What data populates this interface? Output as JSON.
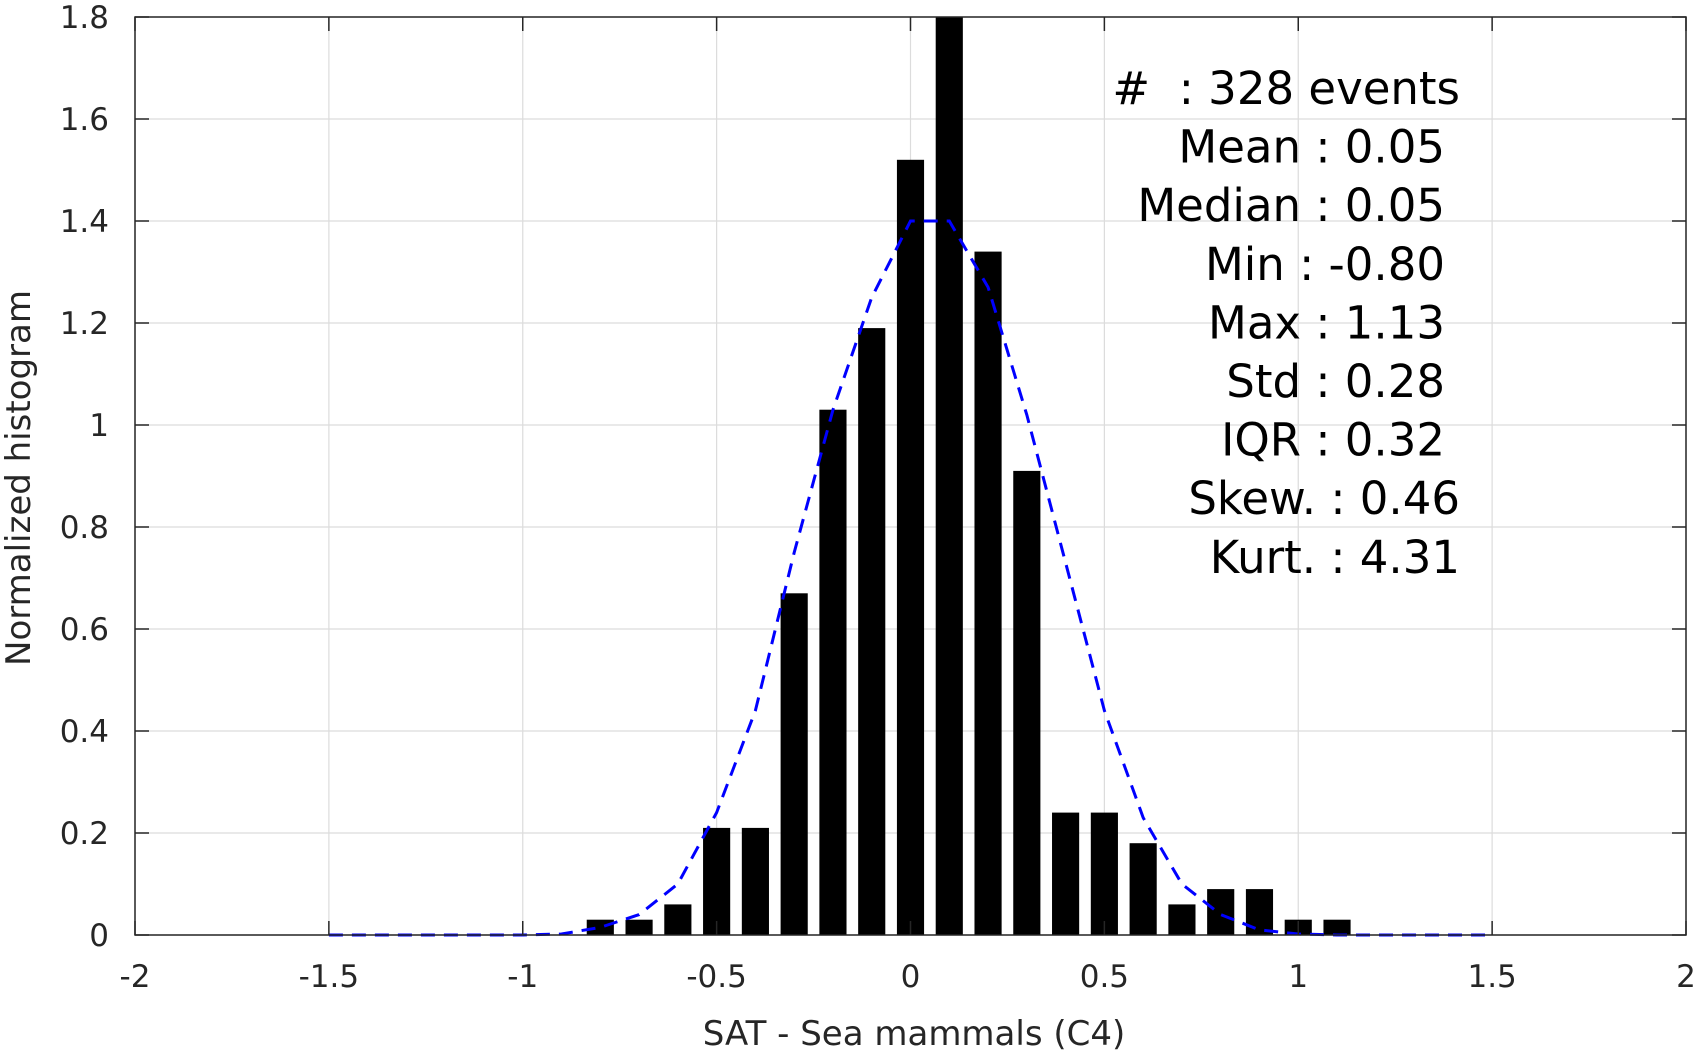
{
  "chart_data": {
    "type": "bar",
    "xlabel": "SAT - Sea mammals (C4)",
    "ylabel": "Normalized histogram",
    "xlim": [
      -2,
      2
    ],
    "ylim": [
      0,
      1.8
    ],
    "x_ticks": [
      -2,
      -1.5,
      -1,
      -0.5,
      0,
      0.5,
      1,
      1.5,
      2
    ],
    "x_tick_labels": [
      "-2",
      "-1.5",
      "-1",
      "-0.5",
      "0",
      "0.5",
      "1",
      "1.5",
      "2"
    ],
    "y_ticks": [
      0,
      0.2,
      0.4,
      0.6,
      0.8,
      1,
      1.2,
      1.4,
      1.6,
      1.8
    ],
    "y_tick_labels": [
      "0",
      "0.2",
      "0.4",
      "0.6",
      "0.8",
      "1",
      "1.2",
      "1.4",
      "1.6",
      "1.8"
    ],
    "grid": true,
    "bar_color": "#000000",
    "bar_width": 0.07,
    "bars": {
      "x": [
        -0.8,
        -0.7,
        -0.6,
        -0.5,
        -0.4,
        -0.3,
        -0.2,
        -0.1,
        0.0,
        0.1,
        0.2,
        0.3,
        0.4,
        0.5,
        0.6,
        0.7,
        0.8,
        0.9,
        1.0,
        1.1
      ],
      "values": [
        0.03,
        0.03,
        0.06,
        0.21,
        0.21,
        0.67,
        1.03,
        1.19,
        1.52,
        1.8,
        1.34,
        0.91,
        0.24,
        0.24,
        0.18,
        0.06,
        0.09,
        0.09,
        0.03,
        0.03
      ]
    },
    "fit_curve": {
      "style": "dashed",
      "color": "#0000ff",
      "x": [
        -1.5,
        -1.4,
        -1.3,
        -1.2,
        -1.1,
        -1.0,
        -0.9,
        -0.8,
        -0.7,
        -0.6,
        -0.5,
        -0.4,
        -0.3,
        -0.2,
        -0.1,
        0.0,
        0.1,
        0.2,
        0.3,
        0.4,
        0.5,
        0.6,
        0.7,
        0.8,
        0.9,
        1.0,
        1.1,
        1.2,
        1.3,
        1.4,
        1.5
      ],
      "y": [
        0.0,
        0.0,
        0.0,
        0.0,
        0.0,
        0.0,
        0.002,
        0.015,
        0.04,
        0.1,
        0.24,
        0.44,
        0.75,
        1.03,
        1.25,
        1.4,
        1.4,
        1.27,
        1.02,
        0.73,
        0.44,
        0.23,
        0.1,
        0.04,
        0.01,
        0.002,
        0.0,
        0.0,
        0.0,
        0.0,
        0.0
      ]
    },
    "annotations": [
      "#  : 328 events",
      "Mean : 0.05",
      "Median : 0.05",
      "Min : -0.80",
      "Max : 1.13",
      "Std : 0.28",
      "IQR : 0.32",
      "Skew. : 0.46",
      "Kurt. : 4.31"
    ]
  }
}
